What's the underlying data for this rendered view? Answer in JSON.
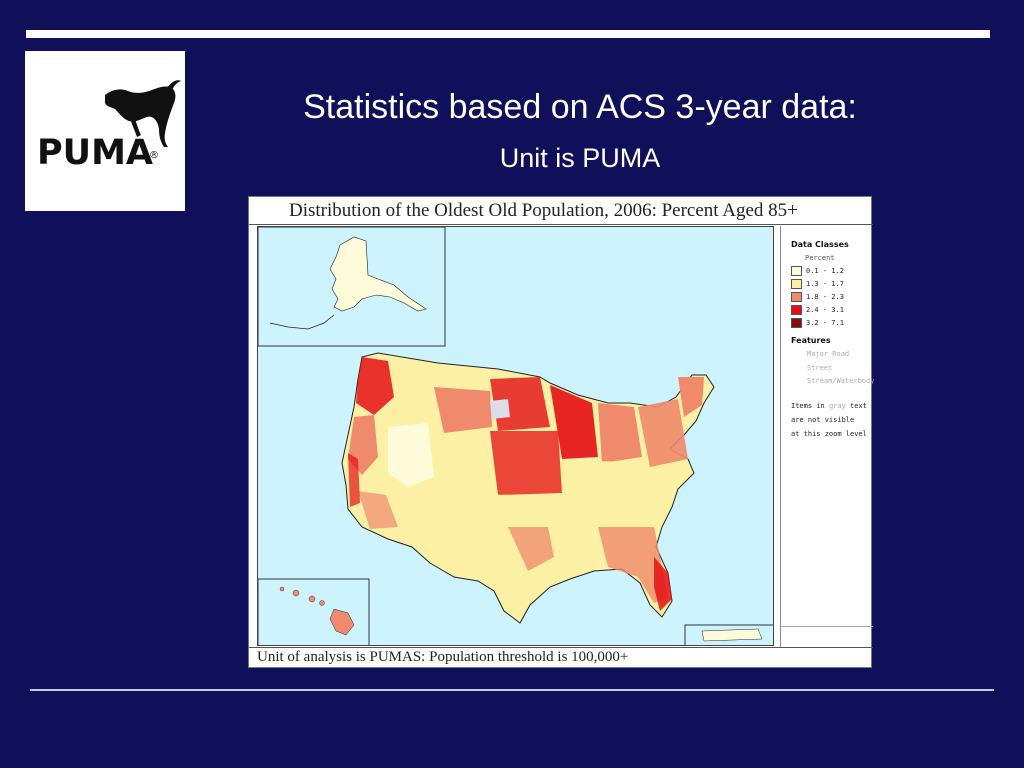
{
  "slide": {
    "title": "Statistics based on ACS 3-year data:",
    "subtitle": "Unit is PUMA"
  },
  "logo": {
    "wordmark": "PUMA",
    "registered_mark": "®",
    "icon": "puma-cat-logo"
  },
  "map": {
    "title": "Distribution of the Oldest Old Population, 2006: Percent Aged 85+",
    "caption": "Unit of analysis is PUMAS: Population threshold is 100,000+",
    "insets": [
      "Alaska",
      "Hawaii",
      "Puerto Rico"
    ],
    "water_color": "#cdf3ff"
  },
  "legend": {
    "heading": "Data Classes",
    "unit": "Percent",
    "classes": [
      {
        "label": "0.1 - 1.2",
        "color": "#fdfbd9"
      },
      {
        "label": "1.3 - 1.7",
        "color": "#fbf0a4"
      },
      {
        "label": "1.8 - 2.3",
        "color": "#f08a6c"
      },
      {
        "label": "2.4 - 3.1",
        "color": "#e40f16"
      },
      {
        "label": "3.2 - 7.1",
        "color": "#8b0a0c"
      }
    ],
    "features_heading": "Features",
    "features": [
      "Major Road",
      "Street",
      "Stream/Waterbody"
    ],
    "note": {
      "part1": "Items in ",
      "gray_word": "gray",
      "part2": " text",
      "line2": "are not visible",
      "line3": "at this zoom level"
    }
  }
}
